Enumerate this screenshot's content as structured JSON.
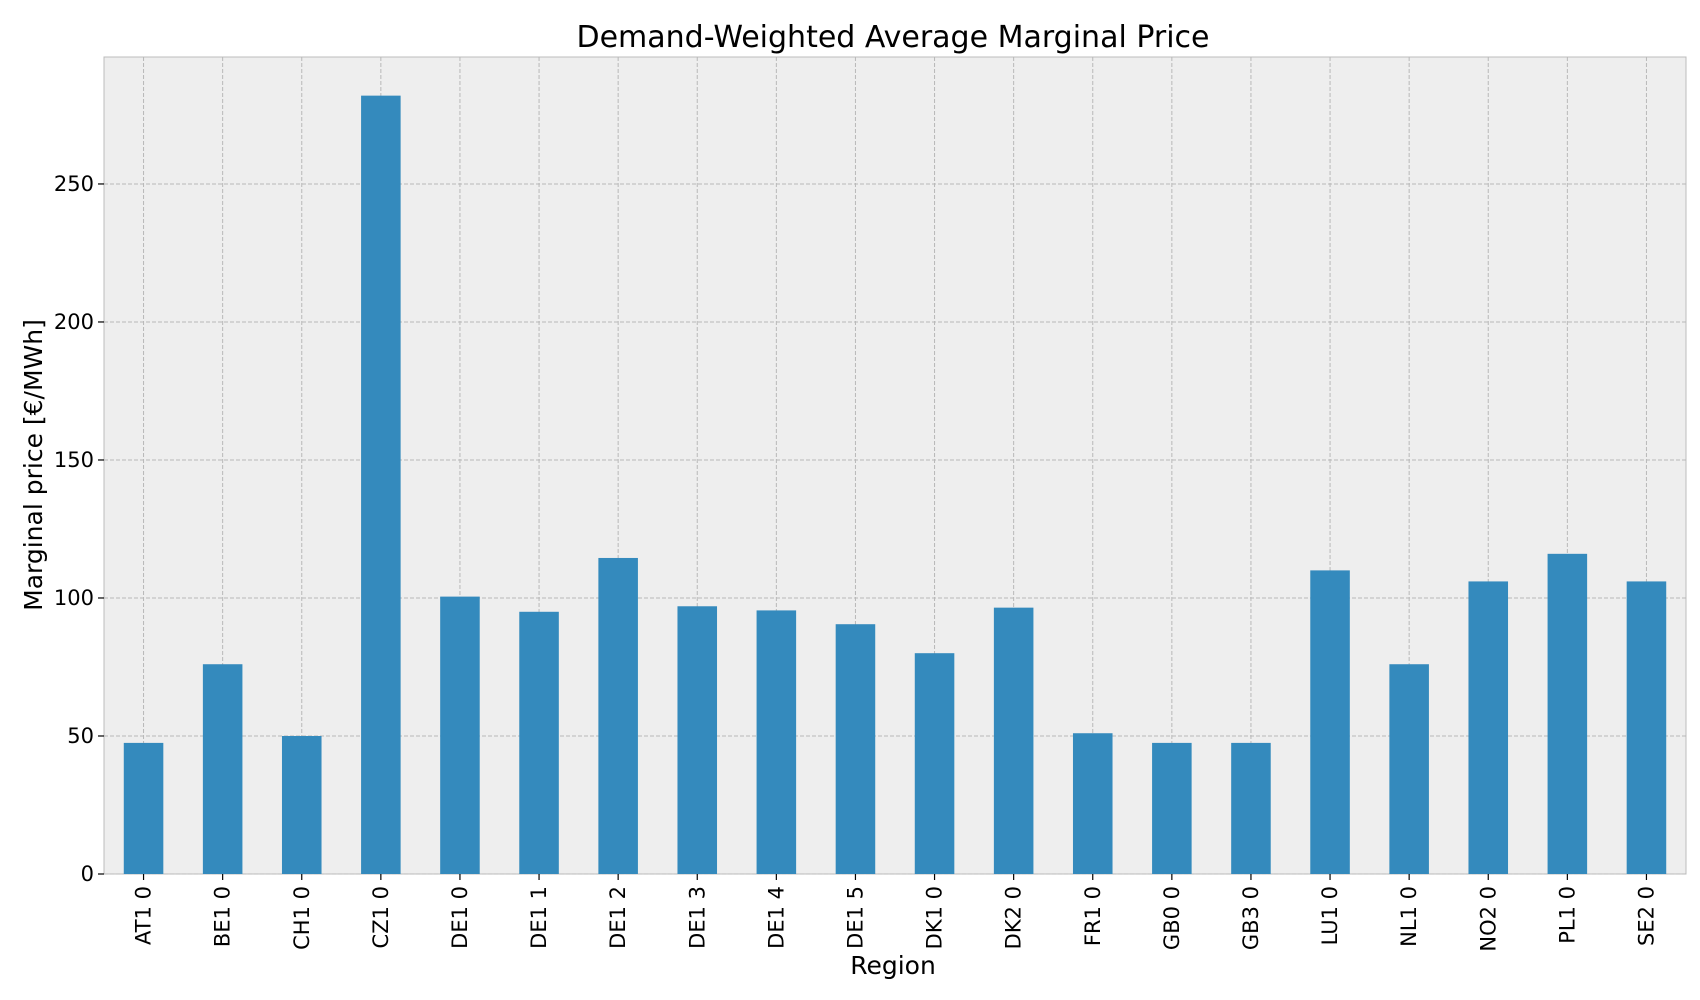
{
  "chart_data": {
    "type": "bar",
    "title": "Demand-Weighted Average Marginal Price",
    "xlabel": "Region",
    "ylabel": "Marginal price [€/MWh]",
    "ylim": [
      0,
      296
    ],
    "yticks": [
      0,
      50,
      100,
      150,
      200,
      250
    ],
    "grid": true,
    "categories": [
      "AT1 0",
      "BE1 0",
      "CH1 0",
      "CZ1 0",
      "DE1 0",
      "DE1 1",
      "DE1 2",
      "DE1 3",
      "DE1 4",
      "DE1 5",
      "DK1 0",
      "DK2 0",
      "FR1 0",
      "GB0 0",
      "GB3 0",
      "LU1 0",
      "NL1 0",
      "NO2 0",
      "PL1 0",
      "SE2 0"
    ],
    "values": [
      47.5,
      76,
      50,
      282,
      100.5,
      95,
      114.5,
      97,
      95.5,
      90.5,
      80,
      96.5,
      51,
      47.5,
      47.5,
      110,
      76,
      106,
      116,
      106
    ],
    "colors": {
      "bar": "#348abd",
      "plot_bg": "#eeeeee",
      "grid": "#b8b8b8"
    }
  }
}
